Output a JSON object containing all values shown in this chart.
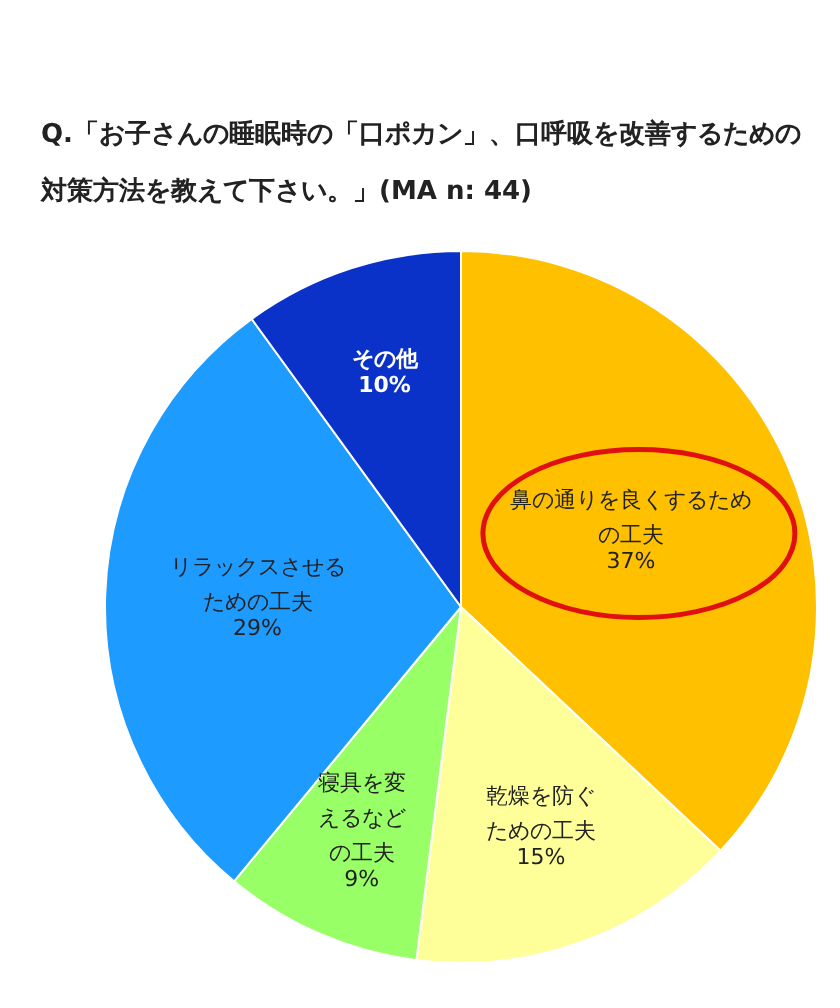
{
  "chart_data": {
    "type": "pie",
    "title": "Q.「お子さんの睡眠時の「口ポカン」、口呼吸を改善するための対策方法を教えて下さい。」(MA n: 44)",
    "categories": [
      "鼻の通りを良くするための工夫",
      "乾燥を防ぐための工夫",
      "寝具を変えるなどの工夫",
      "リラックスさせるための工夫",
      "その他"
    ],
    "values": [
      37,
      15,
      9,
      29,
      10
    ],
    "value_labels": [
      "37%",
      "15%",
      "9%",
      "29%",
      "10%"
    ],
    "colors": [
      "#ffc000",
      "#ffff99",
      "#99ff66",
      "#1e9bff",
      "#0a32c8"
    ]
  }
}
